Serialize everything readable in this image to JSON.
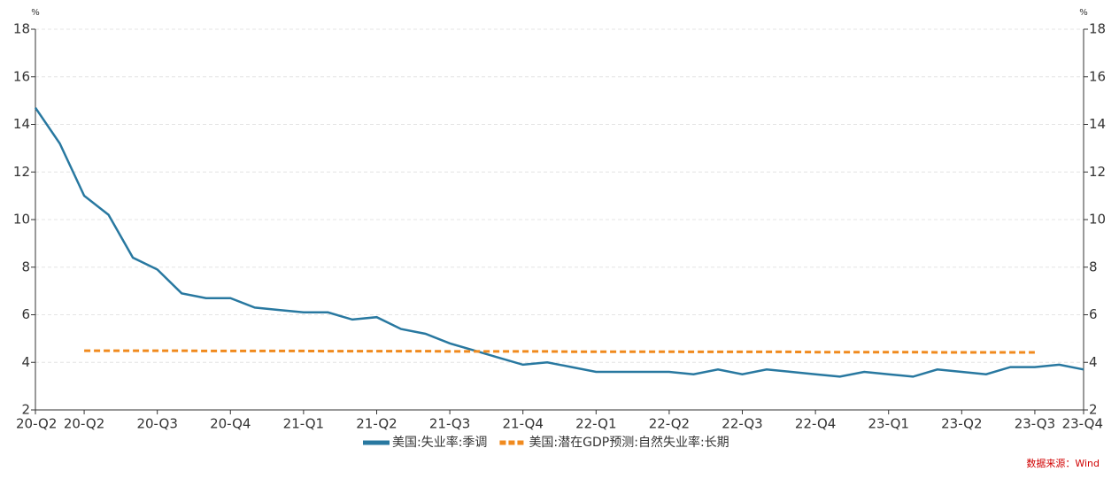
{
  "chart_data": {
    "type": "line",
    "categories": [
      "20-Q2",
      null,
      "20-Q2",
      null,
      null,
      "20-Q3",
      null,
      null,
      "20-Q4",
      null,
      null,
      "21-Q1",
      null,
      null,
      "21-Q2",
      null,
      null,
      "21-Q3",
      null,
      null,
      "21-Q4",
      null,
      null,
      "22-Q1",
      null,
      null,
      "22-Q2",
      null,
      null,
      "22-Q3",
      null,
      null,
      "22-Q4",
      null,
      null,
      "23-Q1",
      null,
      null,
      "23-Q2",
      null,
      null,
      "23-Q3",
      null,
      "23-Q4"
    ],
    "series": [
      {
        "name": "美国:失业率:季调",
        "color": "#2878a0",
        "dash": false,
        "values": [
          14.7,
          13.2,
          11.0,
          10.2,
          8.4,
          7.9,
          6.9,
          6.7,
          6.7,
          6.3,
          6.2,
          6.1,
          6.1,
          5.8,
          5.9,
          5.4,
          5.2,
          4.8,
          4.5,
          4.2,
          3.9,
          4.0,
          3.8,
          3.6,
          3.6,
          3.6,
          3.6,
          3.5,
          3.7,
          3.5,
          3.7,
          3.6,
          3.5,
          3.4,
          3.6,
          3.5,
          3.4,
          3.7,
          3.6,
          3.5,
          3.8,
          3.8,
          3.9,
          3.7
        ]
      },
      {
        "name": "美国:潜在GDP预测:自然失业率:长期",
        "color": "#f08a1e",
        "dash": true,
        "values": [
          null,
          null,
          4.49,
          4.49,
          4.49,
          4.49,
          4.49,
          4.48,
          4.48,
          4.48,
          4.48,
          4.48,
          4.47,
          4.47,
          4.47,
          4.47,
          4.47,
          4.46,
          4.46,
          4.46,
          4.46,
          4.46,
          4.45,
          4.45,
          4.45,
          4.45,
          4.45,
          4.44,
          4.44,
          4.44,
          4.44,
          4.44,
          4.43,
          4.43,
          4.43,
          4.43,
          4.43,
          4.42,
          4.42,
          4.42,
          4.42,
          4.42,
          null,
          null
        ]
      }
    ],
    "ylim": [
      2,
      18
    ],
    "yticks": [
      2,
      4,
      6,
      8,
      10,
      12,
      14,
      16,
      18
    ],
    "y2lim": [
      2,
      18
    ],
    "y2ticks": [
      2,
      4,
      6,
      8,
      10,
      12,
      14,
      16,
      18
    ],
    "yunit": "%",
    "y2unit": "%",
    "grid": true,
    "source": "数据来源：Wind"
  }
}
